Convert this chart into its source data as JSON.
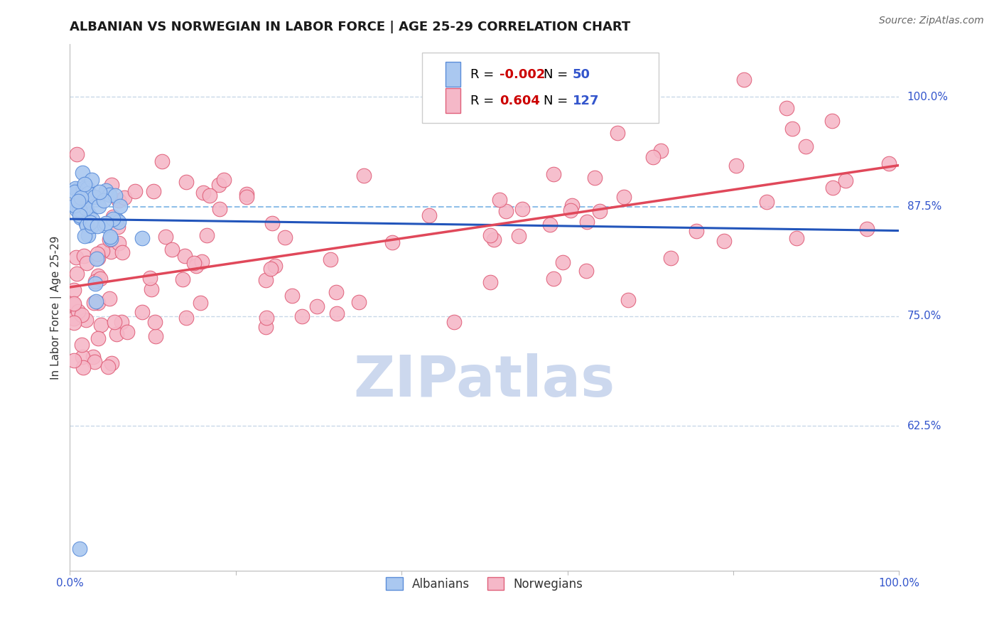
{
  "title": "ALBANIAN VS NORWEGIAN IN LABOR FORCE | AGE 25-29 CORRELATION CHART",
  "source": "Source: ZipAtlas.com",
  "ylabel": "In Labor Force | Age 25-29",
  "ytick_labels": [
    "100.0%",
    "87.5%",
    "75.0%",
    "62.5%"
  ],
  "ytick_values": [
    1.0,
    0.875,
    0.75,
    0.625
  ],
  "xlim": [
    0.0,
    1.0
  ],
  "ylim": [
    0.46,
    1.06
  ],
  "albanian_color": "#aac8f0",
  "norwegian_color": "#f5b8c8",
  "albanian_edge": "#5b8dd9",
  "norwegian_edge": "#e0607a",
  "albanian_line_color": "#2255bb",
  "norwegian_line_color": "#e0485a",
  "dashed87_color": "#90c0e8",
  "grid_color": "#c8d8e8",
  "legend_R_color": "#cc0000",
  "legend_N_color": "#3355cc",
  "watermark_color": "#ccd8ee",
  "R_albanian": -0.002,
  "N_albanian": 50,
  "R_norwegian": 0.604,
  "N_norwegian": 127,
  "title_fontsize": 13,
  "source_fontsize": 10,
  "tick_fontsize": 11,
  "legend_fontsize": 13
}
